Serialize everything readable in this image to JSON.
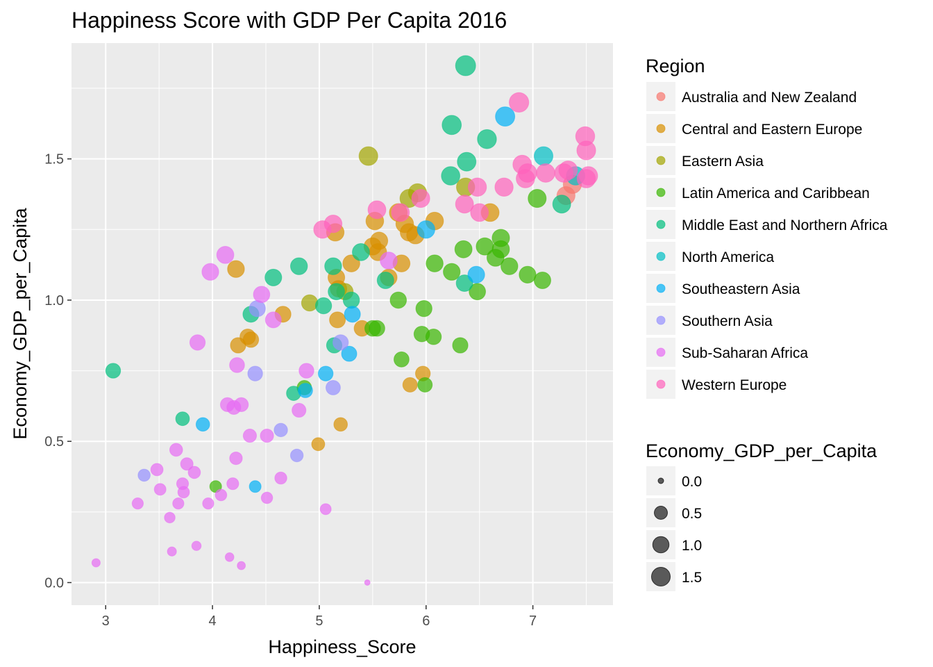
{
  "chart_data": {
    "type": "scatter",
    "title": "Happiness Score with GDP Per Capita 2016",
    "xlabel": "Happiness_Score",
    "ylabel": "Economy_GDP_per_Capita",
    "xlim": [
      2.68,
      7.75
    ],
    "ylim": [
      -0.08,
      1.91
    ],
    "x_ticks": [
      3,
      4,
      5,
      6,
      7
    ],
    "y_ticks": [
      0.0,
      0.5,
      1.0,
      1.5
    ],
    "grid": true,
    "legend_position": "right",
    "color_legend": {
      "title": "Region",
      "entries": [
        {
          "name": "Australia and New Zealand",
          "color": "#F8766D"
        },
        {
          "name": "Central and Eastern Europe",
          "color": "#D89000"
        },
        {
          "name": "Eastern Asia",
          "color": "#A3A500"
        },
        {
          "name": "Latin America and Caribbean",
          "color": "#39B600"
        },
        {
          "name": "Middle East and Northern Africa",
          "color": "#00BF7D"
        },
        {
          "name": "North America",
          "color": "#00BFC4"
        },
        {
          "name": "Southeastern Asia",
          "color": "#00B0F6"
        },
        {
          "name": "Southern Asia",
          "color": "#9590FF"
        },
        {
          "name": "Sub-Saharan Africa",
          "color": "#E76BF3"
        },
        {
          "name": "Western Europe",
          "color": "#FF62BC"
        }
      ]
    },
    "size_legend": {
      "title": "Economy_GDP_per_Capita",
      "entries": [
        {
          "label": "0.0",
          "value": 0.0
        },
        {
          "label": "0.5",
          "value": 0.5
        },
        {
          "label": "1.0",
          "value": 1.0
        },
        {
          "label": "1.5",
          "value": 1.5
        }
      ]
    },
    "series": [
      {
        "name": "Australia and New Zealand",
        "points": [
          [
            7.31,
            1.37
          ],
          [
            7.37,
            1.41
          ]
        ]
      },
      {
        "name": "Central and Eastern Europe",
        "points": [
          [
            4.22,
            1.11
          ],
          [
            4.24,
            0.84
          ],
          [
            4.33,
            0.87
          ],
          [
            4.36,
            0.86
          ],
          [
            4.66,
            0.95
          ],
          [
            4.99,
            0.49
          ],
          [
            5.15,
            1.24
          ],
          [
            5.16,
            1.08
          ],
          [
            5.17,
            0.93
          ],
          [
            5.18,
            1.04
          ],
          [
            5.2,
            0.56
          ],
          [
            5.3,
            1.13
          ],
          [
            5.4,
            0.9
          ],
          [
            5.5,
            1.19
          ],
          [
            5.52,
            1.28
          ],
          [
            5.55,
            1.17
          ],
          [
            5.56,
            1.21
          ],
          [
            5.65,
            1.08
          ],
          [
            5.74,
            1.31
          ],
          [
            5.77,
            1.13
          ],
          [
            5.8,
            1.27
          ],
          [
            5.84,
            1.24
          ],
          [
            5.85,
            0.7
          ],
          [
            5.9,
            1.23
          ],
          [
            5.97,
            0.74
          ],
          [
            6.08,
            1.28
          ],
          [
            6.6,
            1.31
          ]
        ]
      },
      {
        "name": "Eastern Asia",
        "points": [
          [
            4.91,
            0.99
          ],
          [
            5.24,
            1.03
          ],
          [
            5.46,
            1.51
          ],
          [
            5.84,
            1.36
          ],
          [
            5.92,
            1.38
          ],
          [
            6.37,
            1.4
          ]
        ]
      },
      {
        "name": "Latin America and Caribbean",
        "points": [
          [
            4.03,
            0.34
          ],
          [
            4.86,
            0.69
          ],
          [
            5.5,
            0.9
          ],
          [
            5.54,
            0.9
          ],
          [
            5.74,
            1.0
          ],
          [
            5.77,
            0.79
          ],
          [
            5.96,
            0.88
          ],
          [
            5.98,
            0.97
          ],
          [
            5.99,
            0.7
          ],
          [
            6.07,
            0.87
          ],
          [
            6.08,
            1.13
          ],
          [
            6.24,
            1.1
          ],
          [
            6.32,
            0.84
          ],
          [
            6.35,
            1.18
          ],
          [
            6.48,
            1.03
          ],
          [
            6.55,
            1.19
          ],
          [
            6.65,
            1.15
          ],
          [
            6.7,
            1.22
          ],
          [
            6.7,
            1.18
          ],
          [
            6.78,
            1.12
          ],
          [
            6.95,
            1.09
          ],
          [
            7.04,
            1.36
          ],
          [
            7.09,
            1.07
          ]
        ]
      },
      {
        "name": "Middle East and Northern Africa",
        "points": [
          [
            3.07,
            0.75
          ],
          [
            3.72,
            0.58
          ],
          [
            4.36,
            0.95
          ],
          [
            4.57,
            1.08
          ],
          [
            4.76,
            0.67
          ],
          [
            4.81,
            1.12
          ],
          [
            5.04,
            0.98
          ],
          [
            5.13,
            1.12
          ],
          [
            5.14,
            0.84
          ],
          [
            5.16,
            1.03
          ],
          [
            5.3,
            1.0
          ],
          [
            5.39,
            1.17
          ],
          [
            5.62,
            1.07
          ],
          [
            6.23,
            1.44
          ],
          [
            6.24,
            1.62
          ],
          [
            6.36,
            1.06
          ],
          [
            6.37,
            1.83
          ],
          [
            6.38,
            1.49
          ],
          [
            6.57,
            1.57
          ],
          [
            7.27,
            1.34
          ]
        ]
      },
      {
        "name": "North America",
        "points": [
          [
            7.1,
            1.51
          ],
          [
            7.4,
            1.44
          ]
        ]
      },
      {
        "name": "Southeastern Asia",
        "points": [
          [
            3.91,
            0.56
          ],
          [
            4.4,
            0.34
          ],
          [
            4.87,
            0.68
          ],
          [
            5.06,
            0.74
          ],
          [
            5.28,
            0.81
          ],
          [
            5.31,
            0.95
          ],
          [
            6.0,
            1.25
          ],
          [
            6.47,
            1.09
          ],
          [
            6.74,
            1.65
          ]
        ]
      },
      {
        "name": "Southern Asia",
        "points": [
          [
            3.36,
            0.38
          ],
          [
            4.4,
            0.74
          ],
          [
            4.42,
            0.97
          ],
          [
            4.64,
            0.54
          ],
          [
            4.79,
            0.45
          ],
          [
            5.13,
            0.69
          ],
          [
            5.2,
            0.85
          ]
        ]
      },
      {
        "name": "Sub-Saharan Africa",
        "points": [
          [
            2.91,
            0.07
          ],
          [
            3.3,
            0.28
          ],
          [
            3.48,
            0.4
          ],
          [
            3.51,
            0.33
          ],
          [
            3.6,
            0.23
          ],
          [
            3.62,
            0.11
          ],
          [
            3.66,
            0.47
          ],
          [
            3.68,
            0.28
          ],
          [
            3.72,
            0.35
          ],
          [
            3.73,
            0.32
          ],
          [
            3.76,
            0.42
          ],
          [
            3.83,
            0.39
          ],
          [
            3.85,
            0.13
          ],
          [
            3.86,
            0.85
          ],
          [
            3.96,
            0.28
          ],
          [
            3.98,
            1.1
          ],
          [
            4.08,
            0.31
          ],
          [
            4.12,
            1.16
          ],
          [
            4.14,
            0.63
          ],
          [
            4.16,
            0.09
          ],
          [
            4.19,
            0.35
          ],
          [
            4.2,
            0.62
          ],
          [
            4.22,
            0.44
          ],
          [
            4.23,
            0.77
          ],
          [
            4.27,
            0.06
          ],
          [
            4.27,
            0.63
          ],
          [
            4.35,
            0.52
          ],
          [
            4.46,
            1.02
          ],
          [
            4.51,
            0.3
          ],
          [
            4.51,
            0.52
          ],
          [
            4.57,
            0.93
          ],
          [
            4.64,
            0.37
          ],
          [
            4.81,
            0.61
          ],
          [
            4.88,
            0.75
          ],
          [
            5.06,
            0.26
          ],
          [
            5.45,
            0.0
          ],
          [
            5.65,
            1.14
          ]
        ]
      },
      {
        "name": "Western Europe",
        "points": [
          [
            5.03,
            1.25
          ],
          [
            5.13,
            1.27
          ],
          [
            5.54,
            1.32
          ],
          [
            5.76,
            1.31
          ],
          [
            5.95,
            1.36
          ],
          [
            6.36,
            1.34
          ],
          [
            6.48,
            1.4
          ],
          [
            6.5,
            1.31
          ],
          [
            6.73,
            1.4
          ],
          [
            6.87,
            1.7
          ],
          [
            6.9,
            1.48
          ],
          [
            6.93,
            1.43
          ],
          [
            6.95,
            1.45
          ],
          [
            7.12,
            1.45
          ],
          [
            7.29,
            1.45
          ],
          [
            7.33,
            1.46
          ],
          [
            7.49,
            1.58
          ],
          [
            7.5,
            1.53
          ],
          [
            7.5,
            1.43
          ],
          [
            7.52,
            1.44
          ]
        ]
      }
    ]
  }
}
